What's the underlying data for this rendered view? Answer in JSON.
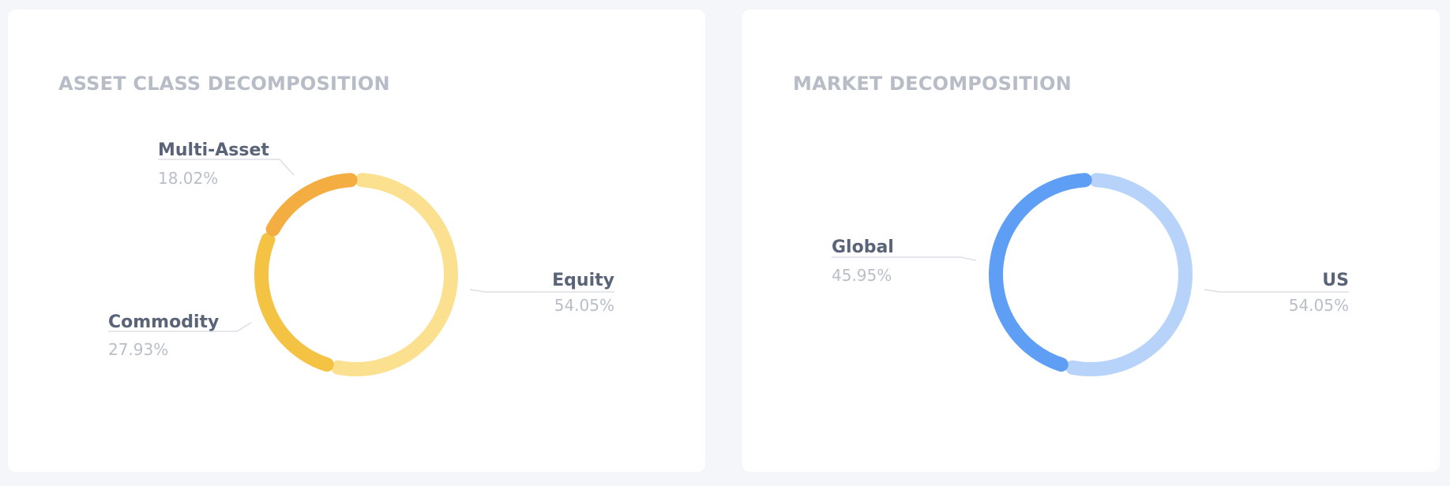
{
  "cards": [
    {
      "title": "ASSET CLASS DECOMPOSITION",
      "chart_data": {
        "type": "pie",
        "style": "donut",
        "title": "ASSET CLASS DECOMPOSITION",
        "slices": [
          {
            "label": "Equity",
            "value": 54.05,
            "display": "54.05%",
            "color": "#fbe18f"
          },
          {
            "label": "Commodity",
            "value": 27.93,
            "display": "27.93%",
            "color": "#f5c344"
          },
          {
            "label": "Multi-Asset",
            "value": 18.02,
            "display": "18.02%",
            "color": "#f4ad41"
          }
        ]
      }
    },
    {
      "title": "MARKET DECOMPOSITION",
      "chart_data": {
        "type": "pie",
        "style": "donut",
        "title": "MARKET DECOMPOSITION",
        "slices": [
          {
            "label": "US",
            "value": 54.05,
            "display": "54.05%",
            "color": "#b8d3fa"
          },
          {
            "label": "Global",
            "value": 45.95,
            "display": "45.95%",
            "color": "#5f9ef5"
          }
        ]
      }
    }
  ]
}
